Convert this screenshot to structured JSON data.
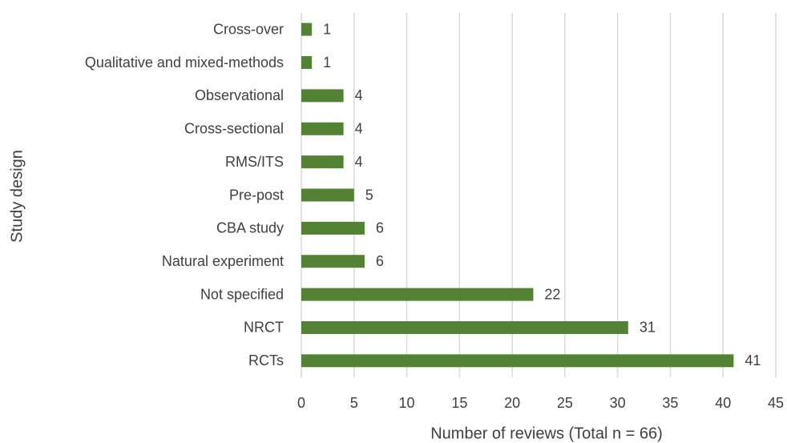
{
  "chart_data": {
    "type": "barh",
    "xlabel": "Number of reviews (Total n = 66)",
    "ylabel": "Study design",
    "categories": [
      "Cross-over",
      "Qualitative and mixed-methods",
      "Observational",
      "Cross-sectional",
      "RMS/ITS",
      "Pre-post",
      "CBA study",
      "Natural experiment",
      "Not specified",
      "NRCT",
      "RCTs"
    ],
    "values": [
      1,
      1,
      4,
      4,
      4,
      5,
      6,
      6,
      22,
      31,
      41
    ],
    "color": "#548235",
    "xlim": [
      0,
      45
    ],
    "xticks": [
      0,
      5,
      10,
      15,
      20,
      25,
      30,
      35,
      40,
      45
    ],
    "grid": true
  }
}
